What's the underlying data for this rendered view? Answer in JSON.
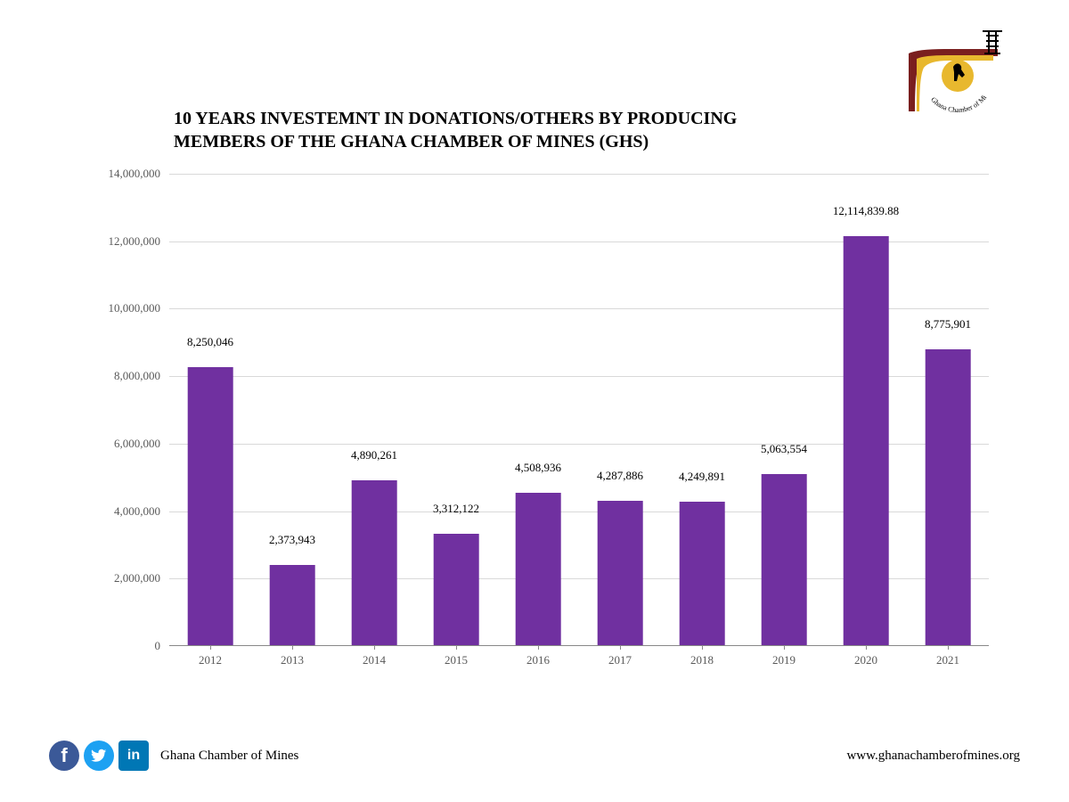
{
  "chart": {
    "type": "bar",
    "title": "10 YEARS INVESTEMNT IN DONATIONS/OTHERS BY PRODUCING MEMBERS OF THE GHANA CHAMBER OF MINES (GHS)",
    "categories": [
      "2012",
      "2013",
      "2014",
      "2015",
      "2016",
      "2017",
      "2018",
      "2019",
      "2020",
      "2021"
    ],
    "values": [
      8250046,
      2373943,
      4890261,
      3312122,
      4508936,
      4287886,
      4249891,
      5063554,
      12114839.88,
      8775901
    ],
    "value_labels": [
      "8,250,046",
      "2,373,943",
      "4,890,261",
      "3,312,122",
      "4,508,936",
      "4,287,886",
      "4,249,891",
      "5,063,554",
      "12,114,839.88",
      "8,775,901"
    ],
    "bar_color": "#7030a0",
    "ylim": [
      0,
      14000000
    ],
    "ytick_step": 2000000,
    "ytick_labels": [
      "0",
      "2,000,000",
      "4,000,000",
      "6,000,000",
      "8,000,000",
      "10,000,000",
      "12,000,000",
      "14,000,000"
    ],
    "grid_color": "#d9d9d9",
    "axis_color": "#888888",
    "tick_font_color": "#595959",
    "tick_fontsize": 13,
    "title_fontsize": 20,
    "bar_width_ratio": 0.55,
    "background_color": "#ffffff"
  },
  "logo": {
    "org_text": "The Ghana Chamber of Mines",
    "colors": {
      "maroon": "#7a1f1f",
      "gold": "#e8b82e",
      "black": "#000000"
    }
  },
  "footer": {
    "org_name": "Ghana Chamber of Mines",
    "website": "www.ghanachamberofmines.org",
    "social": {
      "facebook_color": "#3b5998",
      "twitter_color": "#1da1f2",
      "linkedin_color": "#0077b5"
    }
  }
}
